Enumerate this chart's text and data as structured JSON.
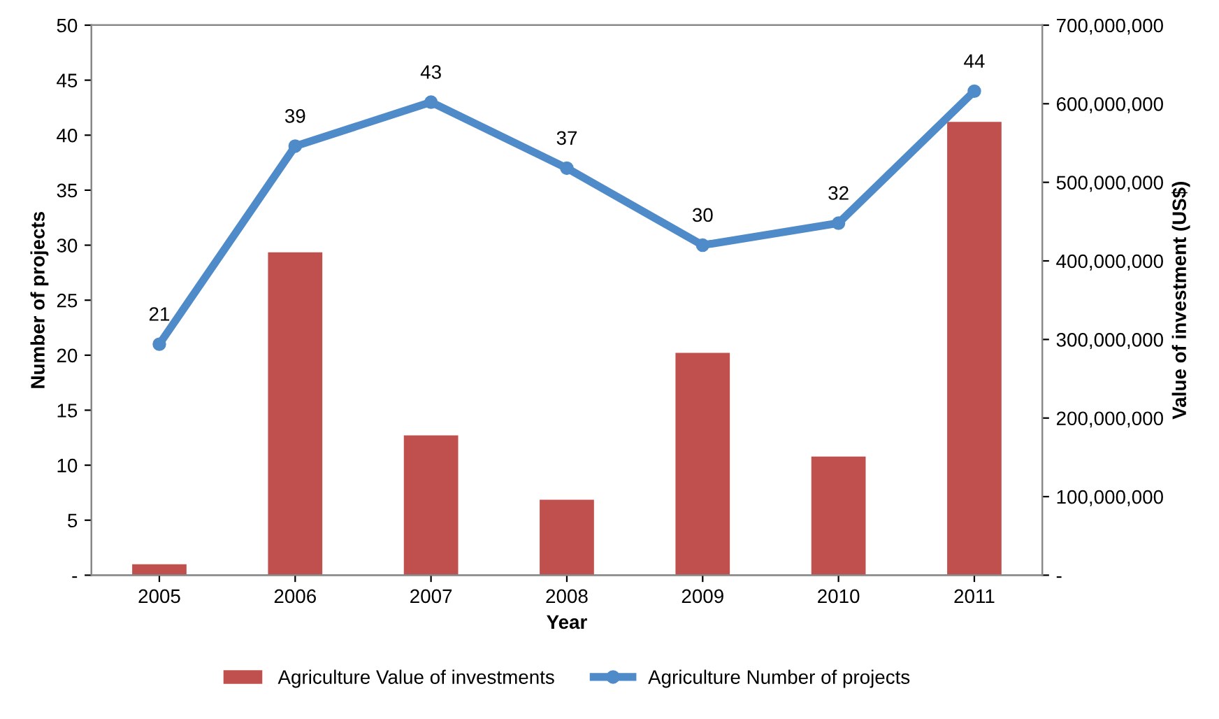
{
  "chart_data": {
    "type": "bar",
    "xlabel": "Year",
    "ylabel": "Number of projects",
    "y2label": "Value of investment (US$)",
    "categories": [
      "2005",
      "2006",
      "2007",
      "2008",
      "2009",
      "2010",
      "2011"
    ],
    "series": [
      {
        "name": "Agriculture Value of investments",
        "axis": "y2",
        "color": "#c0504d",
        "values": [
          14000000,
          411000000,
          178000000,
          96000000,
          283000000,
          151000000,
          577000000
        ]
      },
      {
        "name": "Agriculture Number of projects",
        "type": "line",
        "color": "#4f8ac9",
        "marker": "circle",
        "values": [
          21,
          39,
          43,
          37,
          30,
          32,
          44
        ],
        "value_labels": [
          "21",
          "39",
          "43",
          "37",
          "30",
          "32",
          "44"
        ]
      }
    ],
    "ylim": [
      0,
      50
    ],
    "yticks": [
      {
        "value": 0,
        "label": "-"
      },
      5,
      10,
      15,
      20,
      25,
      30,
      35,
      40,
      45,
      50
    ],
    "y2lim": [
      0,
      700000000
    ],
    "y2ticks": [
      {
        "value": 0,
        "label": "-"
      },
      {
        "value": 100000000,
        "label": "100,000,000"
      },
      {
        "value": 200000000,
        "label": "200,000,000"
      },
      {
        "value": 300000000,
        "label": "300,000,000"
      },
      {
        "value": 400000000,
        "label": "400,000,000"
      },
      {
        "value": 500000000,
        "label": "500,000,000"
      },
      {
        "value": 600000000,
        "label": "600,000,000"
      },
      {
        "value": 700000000,
        "label": "700,000,000"
      }
    ],
    "legend": "bottom",
    "grid": false
  }
}
